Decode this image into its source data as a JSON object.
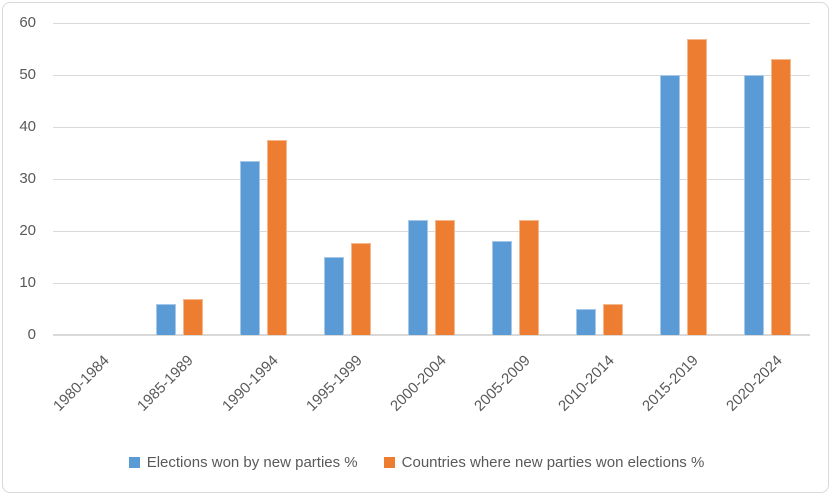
{
  "chart_data": {
    "type": "bar",
    "title": "",
    "xlabel": "",
    "ylabel": "",
    "categories": [
      "1980-1984",
      "1985-1989",
      "1990-1994",
      "1995-1999",
      "2000-2004",
      "2005-2009",
      "2010-2014",
      "2015-2019",
      "2020-2024"
    ],
    "series": [
      {
        "name": "Elections won by new parties %",
        "color": "#5B9BD5",
        "values": [
          0,
          6,
          33.5,
          15,
          22.2,
          18,
          5,
          50,
          50
        ]
      },
      {
        "name": "Countries where new parties won elections %",
        "color": "#ED7D31",
        "values": [
          0,
          7,
          37.5,
          17.6,
          22.2,
          22.2,
          6,
          57,
          53
        ]
      }
    ],
    "ylim": [
      0,
      60
    ],
    "yticks": [
      0,
      10,
      20,
      30,
      40,
      50,
      60
    ],
    "grid": true,
    "legend_position": "bottom",
    "colors": {
      "gridline": "#D9D9D9",
      "axis_text": "#595959",
      "border": "#D9D9D9",
      "background": "#FFFFFF"
    }
  }
}
